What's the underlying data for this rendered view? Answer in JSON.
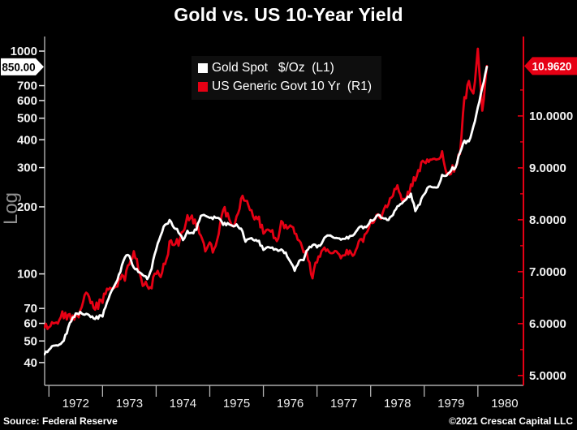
{
  "title": "Gold vs. US 10-Year Yield",
  "legend": {
    "items": [
      {
        "label": "Gold Spot   $/Oz  (L1)",
        "color": "#ffffff"
      },
      {
        "label": "US Generic Govt 10 Yr  (R1)",
        "color": "#e60014"
      }
    ]
  },
  "footer": {
    "source": "Source: Federal Reserve",
    "copyright": "©2021 Crescat Capital LLC"
  },
  "left_axis": {
    "scale_label": "Log",
    "last_value_badge": "850.00",
    "tick_values": [
      1000,
      700,
      600,
      500,
      400,
      300,
      200,
      100,
      70,
      60,
      50,
      40
    ]
  },
  "right_axis": {
    "last_value_badge": "10.9620",
    "tick_values": [
      10,
      9,
      8,
      7,
      6,
      5
    ],
    "tick_labels": [
      "10.0000",
      "9.0000",
      "8.0000",
      "7.0000",
      "6.0000",
      "5.0000"
    ],
    "minor_ticks": [
      10.5,
      9.5,
      8.5,
      7.5,
      6.5,
      5.5
    ]
  },
  "x_axis": {
    "first_year": 1972,
    "year_labels": [
      "1972",
      "1973",
      "1974",
      "1975",
      "1976",
      "1977",
      "1978",
      "1979",
      "1980"
    ]
  },
  "colors": {
    "background": "#000000",
    "gold_line": "#ffffff",
    "yield_line": "#e60014",
    "right_spine": "#e60014",
    "left_spine": "#cccccc",
    "bottom_spine": "#cccccc",
    "tick_label": "#f2f2f2",
    "left_badge_bg": "#ffffff",
    "left_badge_text": "#000000",
    "right_badge_bg": "#e60014",
    "right_badge_text": "#ffffff"
  },
  "chart_data": {
    "type": "line",
    "title": "Gold vs. US 10-Year Yield",
    "x_axis_range": [
      1971.92,
      1980.85
    ],
    "left_axis_scale": "log",
    "left_axis_range": [
      31.6,
      1163
    ],
    "right_axis_scale": "linear",
    "right_axis_range": [
      4.81,
      11.53
    ],
    "x_start": 1971.9167,
    "x_step_years": 0.0833333,
    "series": [
      {
        "name": "Gold Spot $/Oz",
        "axis": "L1",
        "color": "#ffffff",
        "last_value": 850.0,
        "values": [
          43.5,
          45.8,
          48.3,
          48.3,
          49.0,
          54.6,
          62.1,
          65.7,
          67.0,
          65.5,
          64.9,
          62.9,
          63.9,
          65.1,
          74.2,
          84.4,
          90.5,
          102.0,
          120.1,
          120.2,
          106.8,
          103.0,
          100.1,
          94.8,
          106.7,
          129.2,
          150.2,
          168.4,
          172.2,
          163.3,
          154.1,
          143.0,
          154.6,
          151.8,
          158.8,
          181.7,
          183.9,
          176.3,
          179.0,
          178.2,
          167.4,
          167.0,
          164.3,
          166.7,
          159.8,
          141.3,
          142.9,
          142.4,
          139.3,
          128.2,
          131.5,
          129.6,
          127.9,
          126.9,
          123.8,
          112.5,
          104.0,
          114.2,
          116.1,
          130.5,
          134.5,
          132.3,
          136.3,
          148.9,
          149.2,
          146.6,
          143.0,
          144.1,
          146.0,
          149.5,
          158.9,
          162.1,
          160.5,
          173.2,
          178.2,
          183.7,
          175.3,
          176.3,
          183.7,
          200.3,
          208.7,
          217.1,
          227.4,
          193.4,
          207.8,
          227.3,
          245.7,
          242.0,
          245.3,
          274.6,
          277.5,
          294.7,
          300.8,
          355.1,
          391.7,
          392.0,
          455.1,
          560,
          680,
          850
        ]
      },
      {
        "name": "US Generic Govt 10 Yr",
        "axis": "R1",
        "color": "#e60014",
        "last_value": 10.962,
        "values": [
          5.93,
          5.95,
          6.08,
          6.07,
          6.19,
          6.13,
          6.11,
          6.11,
          6.21,
          6.55,
          6.48,
          6.28,
          6.36,
          6.46,
          6.64,
          6.71,
          6.67,
          6.85,
          6.9,
          7.13,
          7.4,
          7.09,
          6.79,
          6.73,
          6.74,
          6.99,
          6.96,
          7.21,
          7.51,
          7.58,
          7.54,
          7.81,
          8.04,
          8.04,
          7.9,
          7.68,
          7.43,
          7.5,
          7.39,
          7.73,
          8.23,
          8.06,
          7.86,
          8.06,
          8.4,
          8.43,
          8.14,
          8.05,
          8.0,
          7.74,
          7.79,
          7.73,
          7.56,
          7.9,
          7.86,
          7.83,
          7.77,
          7.59,
          7.41,
          7.29,
          6.87,
          7.21,
          7.39,
          7.46,
          7.37,
          7.46,
          7.28,
          7.33,
          7.4,
          7.34,
          7.52,
          7.58,
          7.69,
          7.96,
          8.03,
          8.04,
          8.15,
          8.35,
          8.46,
          8.64,
          8.41,
          8.42,
          8.64,
          8.81,
          9.01,
          9.1,
          9.1,
          9.12,
          9.18,
          9.25,
          8.91,
          8.95,
          9.03,
          9.33,
          10.3,
          10.65,
          10.39,
          11.3,
          10.05,
          10.962
        ]
      }
    ]
  }
}
